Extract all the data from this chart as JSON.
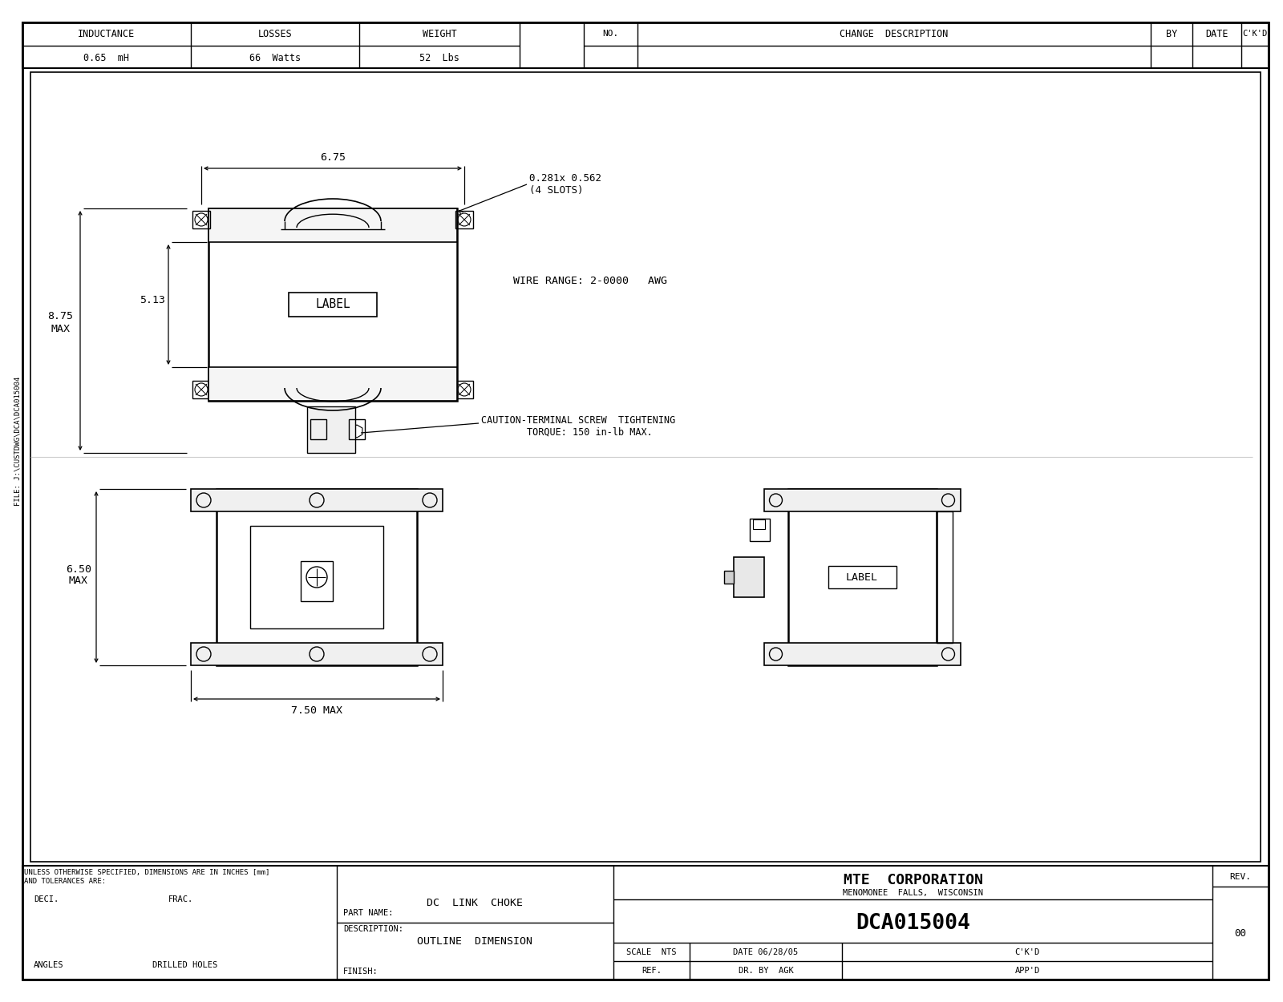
{
  "bg_color": "#ffffff",
  "line_color": "#000000",
  "header": {
    "inductance_label": "INDUCTANCE",
    "inductance_value": "0.65  mH",
    "losses_label": "LOSSES",
    "losses_value": "66  Watts",
    "weight_label": "WEIGHT",
    "weight_value": "52  Lbs",
    "no_label": "NO.",
    "change_desc_label": "CHANGE  DESCRIPTION",
    "by_label": "BY",
    "date_label": "DATE",
    "ckd_label": "C'K'D"
  },
  "dim_675": "6.75",
  "dim_513": "5.13",
  "dim_875_a": "8.75",
  "dim_875_b": "MAX",
  "dim_650_a": "6.50",
  "dim_650_b": "MAX",
  "dim_750": "7.50 MAX",
  "slots_note_a": "0.281x 0.562",
  "slots_note_b": "(4 SLOTS)",
  "wire_range": "WIRE RANGE: 2-0000   AWG",
  "caution_a": "CAUTION-TERMINAL SCREW  TIGHTENING",
  "caution_b": "        TORQUE: 150 in-lb MAX.",
  "label_text": "LABEL",
  "file_label": "FILE: J:\\CUSTDWG\\DCA\\DCA015004",
  "footer": {
    "notes_line1": "UNLESS OTHERWISE SPECIFIED, DIMENSIONS ARE IN INCHES [mm]",
    "notes_line2": "AND TOLERANCES ARE:",
    "deci_label": "DECI.",
    "frac_label": "FRAC.",
    "angles_label": "ANGLES",
    "drilled_label": "DRILLED HOLES",
    "part_name_label": "PART NAME:",
    "part_name_value": "DC  LINK  CHOKE",
    "description_label": "DESCRIPTION:",
    "description_value": "OUTLINE  DIMENSION",
    "finish_label": "FINISH:",
    "company_name": "MTE  CORPORATION",
    "company_city": "MENOMONEE  FALLS,  WISCONSIN",
    "part_number": "DCA015004",
    "rev_label": "REV.",
    "rev_value": "00",
    "scale_label": "SCALE",
    "scale_value": "NTS",
    "date_footer": "DATE 06/28/05",
    "ckd_footer": "C'K'D",
    "ref_label": "REF.",
    "dr_by_label": "DR. BY",
    "dr_by_value": "AGK",
    "appd_label": "APP'D"
  }
}
